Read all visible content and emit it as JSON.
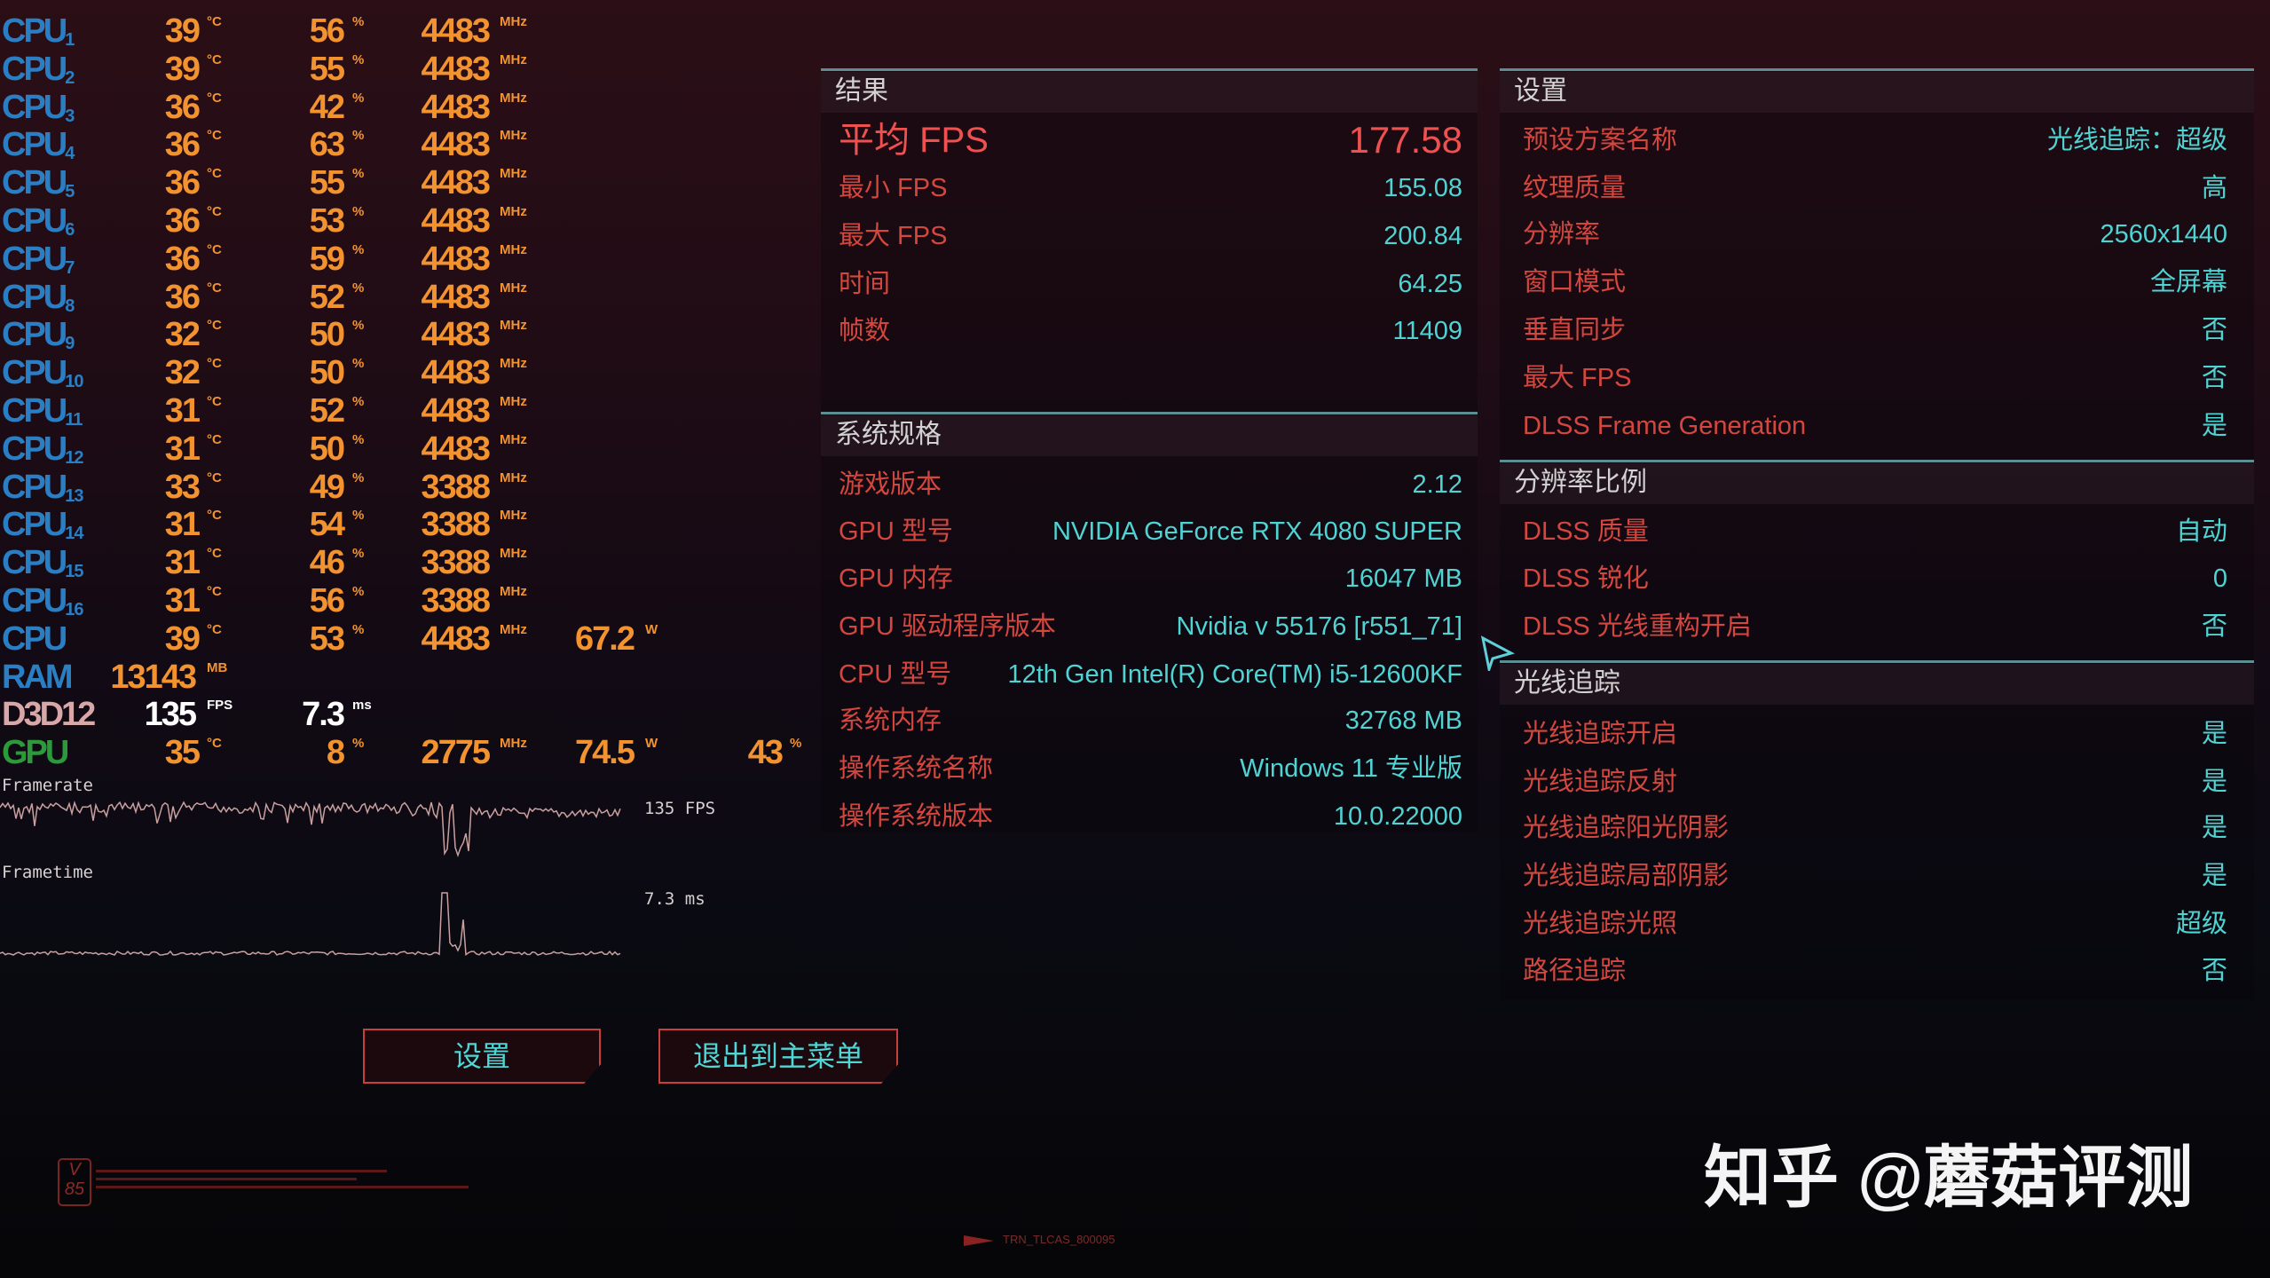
{
  "osd": {
    "rows": [
      {
        "label": "CPU",
        "sub": "1",
        "temp": "39",
        "temp_unit": "°C",
        "load": "56",
        "load_unit": "%",
        "clock": "4483",
        "clock_unit": "MHz"
      },
      {
        "label": "CPU",
        "sub": "2",
        "temp": "39",
        "temp_unit": "°C",
        "load": "55",
        "load_unit": "%",
        "clock": "4483",
        "clock_unit": "MHz"
      },
      {
        "label": "CPU",
        "sub": "3",
        "temp": "36",
        "temp_unit": "°C",
        "load": "42",
        "load_unit": "%",
        "clock": "4483",
        "clock_unit": "MHz"
      },
      {
        "label": "CPU",
        "sub": "4",
        "temp": "36",
        "temp_unit": "°C",
        "load": "63",
        "load_unit": "%",
        "clock": "4483",
        "clock_unit": "MHz"
      },
      {
        "label": "CPU",
        "sub": "5",
        "temp": "36",
        "temp_unit": "°C",
        "load": "55",
        "load_unit": "%",
        "clock": "4483",
        "clock_unit": "MHz"
      },
      {
        "label": "CPU",
        "sub": "6",
        "temp": "36",
        "temp_unit": "°C",
        "load": "53",
        "load_unit": "%",
        "clock": "4483",
        "clock_unit": "MHz"
      },
      {
        "label": "CPU",
        "sub": "7",
        "temp": "36",
        "temp_unit": "°C",
        "load": "59",
        "load_unit": "%",
        "clock": "4483",
        "clock_unit": "MHz"
      },
      {
        "label": "CPU",
        "sub": "8",
        "temp": "36",
        "temp_unit": "°C",
        "load": "52",
        "load_unit": "%",
        "clock": "4483",
        "clock_unit": "MHz"
      },
      {
        "label": "CPU",
        "sub": "9",
        "temp": "32",
        "temp_unit": "°C",
        "load": "50",
        "load_unit": "%",
        "clock": "4483",
        "clock_unit": "MHz"
      },
      {
        "label": "CPU",
        "sub": "10",
        "temp": "32",
        "temp_unit": "°C",
        "load": "50",
        "load_unit": "%",
        "clock": "4483",
        "clock_unit": "MHz"
      },
      {
        "label": "CPU",
        "sub": "11",
        "temp": "31",
        "temp_unit": "°C",
        "load": "52",
        "load_unit": "%",
        "clock": "4483",
        "clock_unit": "MHz"
      },
      {
        "label": "CPU",
        "sub": "12",
        "temp": "31",
        "temp_unit": "°C",
        "load": "50",
        "load_unit": "%",
        "clock": "4483",
        "clock_unit": "MHz"
      },
      {
        "label": "CPU",
        "sub": "13",
        "temp": "33",
        "temp_unit": "°C",
        "load": "49",
        "load_unit": "%",
        "clock": "3388",
        "clock_unit": "MHz"
      },
      {
        "label": "CPU",
        "sub": "14",
        "temp": "31",
        "temp_unit": "°C",
        "load": "54",
        "load_unit": "%",
        "clock": "3388",
        "clock_unit": "MHz"
      },
      {
        "label": "CPU",
        "sub": "15",
        "temp": "31",
        "temp_unit": "°C",
        "load": "46",
        "load_unit": "%",
        "clock": "3388",
        "clock_unit": "MHz"
      },
      {
        "label": "CPU",
        "sub": "16",
        "temp": "31",
        "temp_unit": "°C",
        "load": "56",
        "load_unit": "%",
        "clock": "3388",
        "clock_unit": "MHz"
      },
      {
        "label": "CPU",
        "sub": "",
        "temp": "39",
        "temp_unit": "°C",
        "load": "53",
        "load_unit": "%",
        "clock": "4483",
        "clock_unit": "MHz",
        "power": "67.2",
        "power_unit": "W"
      },
      {
        "label": "RAM",
        "sub": "",
        "memory": "13143",
        "memory_unit": "MB"
      },
      {
        "label": "D3D12",
        "sub": "",
        "fps": "135",
        "fps_unit": "FPS",
        "frametime": "7.3",
        "frametime_unit": "ms"
      },
      {
        "label": "GPU",
        "sub": "",
        "temp": "35",
        "temp_unit": "°C",
        "load": "8",
        "load_unit": "%",
        "clock": "2775",
        "clock_unit": "MHz",
        "power": "74.5",
        "power_unit": "W",
        "fan": "43",
        "fan_unit": "%"
      }
    ],
    "label_colors": {
      "CPU": "#2a7fc4",
      "RAM": "#2a7fc4",
      "D3D12": "#d8a8a8",
      "GPU": "#2a9a3a"
    },
    "value_color": "#f29330",
    "framerate_label": "Framerate",
    "framerate_value": "135 FPS",
    "frametime_label": "Frametime",
    "frametime_value": "7.3 ms"
  },
  "results": {
    "title": "结果",
    "rows": [
      {
        "label": "平均 FPS",
        "value": "177.58"
      },
      {
        "label": "最小 FPS",
        "value": "155.08"
      },
      {
        "label": "最大 FPS",
        "value": "200.84"
      },
      {
        "label": "时间",
        "value": "64.25"
      },
      {
        "label": "帧数",
        "value": "11409"
      }
    ]
  },
  "system": {
    "title": "系统规格",
    "rows": [
      {
        "label": "游戏版本",
        "value": "2.12"
      },
      {
        "label": "GPU 型号",
        "value": "NVIDIA GeForce RTX 4080 SUPER"
      },
      {
        "label": "GPU 内存",
        "value": "16047 MB"
      },
      {
        "label": "GPU 驱动程序版本",
        "value": "Nvidia v 55176 [r551_71]"
      },
      {
        "label": "CPU 型号",
        "value": "12th Gen Intel(R) Core(TM) i5-12600KF"
      },
      {
        "label": "系统内存",
        "value": "32768 MB"
      },
      {
        "label": "操作系统名称",
        "value": "Windows 11 专业版"
      },
      {
        "label": "操作系统版本",
        "value": "10.0.22000"
      }
    ]
  },
  "settings": {
    "sections": [
      {
        "title": "设置",
        "rows": [
          {
            "label": "预设方案名称",
            "value": "光线追踪：超级"
          },
          {
            "label": "纹理质量",
            "value": "高"
          },
          {
            "label": "分辨率",
            "value": "2560x1440"
          },
          {
            "label": "窗口模式",
            "value": "全屏幕"
          },
          {
            "label": "垂直同步",
            "value": "否"
          },
          {
            "label": "最大 FPS",
            "value": "否"
          },
          {
            "label": "DLSS Frame Generation",
            "value": "是"
          }
        ]
      },
      {
        "title": "分辨率比例",
        "rows": [
          {
            "label": "DLSS 质量",
            "value": "自动"
          },
          {
            "label": "DLSS 锐化",
            "value": "0"
          },
          {
            "label": "DLSS 光线重构开启",
            "value": "否"
          }
        ]
      },
      {
        "title": "光线追踪",
        "rows": [
          {
            "label": "光线追踪开启",
            "value": "是"
          },
          {
            "label": "光线追踪反射",
            "value": "是"
          },
          {
            "label": "光线追踪阳光阴影",
            "value": "是"
          },
          {
            "label": "光线追踪局部阴影",
            "value": "是"
          },
          {
            "label": "光线追踪光照",
            "value": "超级"
          },
          {
            "label": "路径追踪",
            "value": "否"
          }
        ]
      }
    ]
  },
  "buttons": {
    "settings": "设置",
    "exit": "退出到主菜单"
  },
  "footer": {
    "badge": "V 85",
    "code": "TRN_TLCAS_800095"
  },
  "watermark": "知乎 @蘑菇评测",
  "colors": {
    "label_red": "#d4473f",
    "value_cyan": "#4fd3d3",
    "accent_line": "#6aa6ab",
    "avg_fps_red": "#ef5050"
  }
}
